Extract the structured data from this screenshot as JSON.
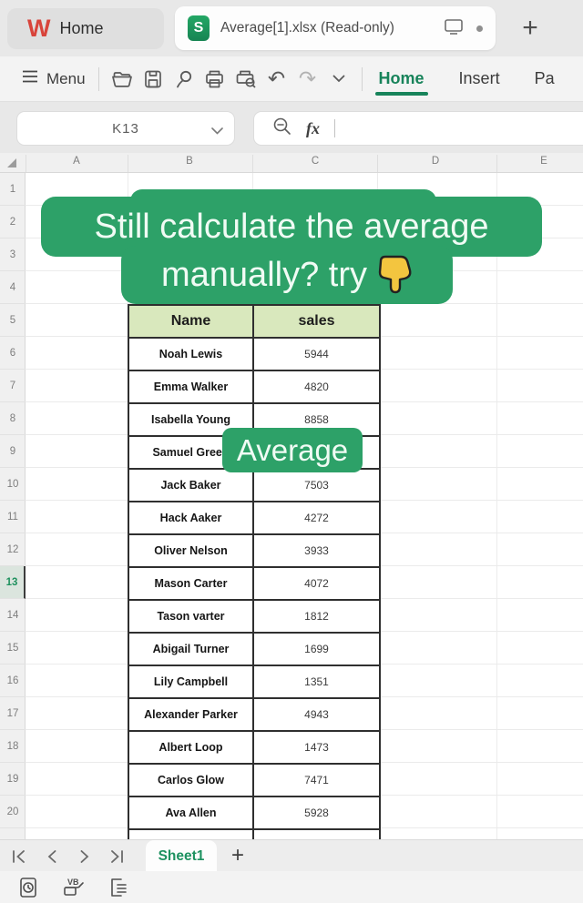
{
  "brand": {
    "logo_letter": "W",
    "doc_icon_letter": "S",
    "accent_green": "#17835a",
    "overlay_green": "#2da168",
    "logo_red": "#d8443b"
  },
  "tab_bar": {
    "home_tab_label": "Home",
    "document_tab_title": "Average[1].xlsx (Read-only)",
    "new_tab_glyph": "+"
  },
  "toolbar": {
    "menu_label": "Menu",
    "undo_glyph": "↶",
    "redo_glyph": "↷",
    "ribbon_tabs": [
      {
        "label": "Home",
        "active": true
      },
      {
        "label": "Insert",
        "active": false
      },
      {
        "label": "Pa",
        "active": false
      }
    ]
  },
  "formula_bar": {
    "cell_reference": "K13",
    "fx_label": "fx"
  },
  "grid": {
    "column_letters": [
      "A",
      "B",
      "C",
      "D",
      "E"
    ],
    "row_count": 20,
    "selected_row": 13
  },
  "overlays": {
    "headline_line1": "Still calculate the average",
    "headline_line2": "manually? try",
    "pointer_icon": "down-pointing-hand",
    "average_label": "Average"
  },
  "table": {
    "headers": {
      "name": "Name",
      "sales": "sales"
    },
    "rows": [
      {
        "name": "Noah Lewis",
        "sales": "5944"
      },
      {
        "name": "Emma Walker",
        "sales": "4820"
      },
      {
        "name": "Isabella Young",
        "sales": "8858"
      },
      {
        "name": "Samuel Green",
        "sales": ""
      },
      {
        "name": "Jack Baker",
        "sales": "7503"
      },
      {
        "name": "Hack Aaker",
        "sales": "4272"
      },
      {
        "name": "Oliver Nelson",
        "sales": "3933"
      },
      {
        "name": "Mason Carter",
        "sales": "4072"
      },
      {
        "name": "Tason varter",
        "sales": "1812"
      },
      {
        "name": "Abigail Turner",
        "sales": "1699"
      },
      {
        "name": "Lily Campbell",
        "sales": "1351"
      },
      {
        "name": "Alexander Parker",
        "sales": "4943"
      },
      {
        "name": "Albert Loop",
        "sales": "1473"
      },
      {
        "name": "Carlos Glow",
        "sales": "7471"
      },
      {
        "name": "Ava Allen",
        "sales": "5928"
      }
    ]
  },
  "sheet_bar": {
    "active_sheet": "Sheet1",
    "add_sheet_glyph": "+"
  }
}
